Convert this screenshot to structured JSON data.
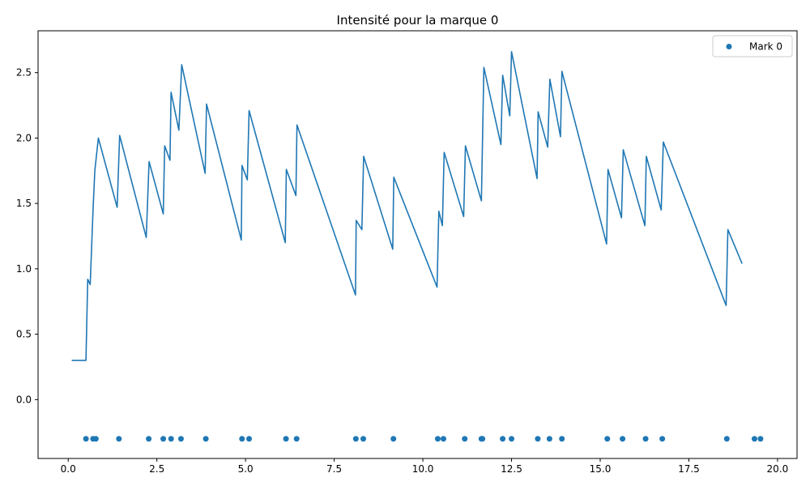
{
  "chart_data": {
    "type": "line",
    "title": "Intensité pour la marque 0",
    "xlabel": "",
    "ylabel": "",
    "xlim": [
      -0.85,
      20.55
    ],
    "ylim": [
      -0.45,
      2.82
    ],
    "xticks": [
      0.0,
      2.5,
      5.0,
      7.5,
      10.0,
      12.5,
      15.0,
      17.5,
      20.0
    ],
    "xtick_labels": [
      "0.0",
      "2.5",
      "5.0",
      "7.5",
      "10.0",
      "12.5",
      "15.0",
      "17.5",
      "20.0"
    ],
    "yticks": [
      0.0,
      0.5,
      1.0,
      1.5,
      2.0,
      2.5
    ],
    "ytick_labels": [
      "0.0",
      "0.5",
      "1.0",
      "1.5",
      "2.0",
      "2.5"
    ],
    "grid": false,
    "legend": {
      "placement": "top-right",
      "entries": [
        "Mark 0"
      ]
    },
    "colors": {
      "series": "#1f77b4"
    },
    "series": [
      {
        "name": "",
        "kind": "line",
        "x": [
          0.1,
          0.5,
          0.55,
          0.62,
          0.7,
          0.75,
          0.85,
          1.38,
          1.45,
          2.2,
          2.28,
          2.68,
          2.72,
          2.87,
          2.9,
          3.12,
          3.2,
          3.86,
          3.9,
          4.88,
          4.9,
          5.05,
          5.1,
          6.12,
          6.15,
          6.42,
          6.45,
          8.1,
          8.12,
          8.28,
          8.33,
          9.15,
          9.18,
          10.4,
          10.45,
          10.55,
          10.6,
          11.15,
          11.2,
          11.65,
          11.72,
          12.2,
          12.25,
          12.45,
          12.5,
          13.22,
          13.25,
          13.52,
          13.58,
          13.88,
          13.92,
          15.18,
          15.22,
          15.6,
          15.65,
          16.26,
          16.3,
          16.72,
          16.78,
          18.55,
          18.6,
          19.0
        ],
        "y": [
          0.3,
          0.3,
          0.92,
          0.88,
          1.45,
          1.75,
          2.0,
          1.47,
          2.02,
          1.24,
          1.82,
          1.42,
          1.94,
          1.83,
          2.35,
          2.06,
          2.56,
          1.73,
          2.26,
          1.22,
          1.79,
          1.68,
          2.21,
          1.2,
          1.76,
          1.56,
          2.1,
          0.8,
          1.37,
          1.3,
          1.86,
          1.15,
          1.7,
          0.86,
          1.44,
          1.33,
          1.89,
          1.4,
          1.94,
          1.52,
          2.54,
          1.95,
          2.48,
          2.17,
          2.66,
          1.69,
          2.2,
          1.93,
          2.45,
          2.01,
          2.51,
          1.19,
          1.76,
          1.39,
          1.91,
          1.33,
          1.86,
          1.45,
          1.97,
          0.72,
          1.3,
          1.04
        ]
      },
      {
        "name": "Mark 0",
        "kind": "scatter",
        "x": [
          0.5,
          0.7,
          0.78,
          1.43,
          2.27,
          2.68,
          2.9,
          3.18,
          3.88,
          4.9,
          5.1,
          6.14,
          6.44,
          8.11,
          8.32,
          9.17,
          10.42,
          10.58,
          11.18,
          11.65,
          11.68,
          12.25,
          12.5,
          13.24,
          13.57,
          13.92,
          15.2,
          15.63,
          16.28,
          16.75,
          18.57,
          19.35,
          19.52
        ],
        "y": [
          -0.3,
          -0.3,
          -0.3,
          -0.3,
          -0.3,
          -0.3,
          -0.3,
          -0.3,
          -0.3,
          -0.3,
          -0.3,
          -0.3,
          -0.3,
          -0.3,
          -0.3,
          -0.3,
          -0.3,
          -0.3,
          -0.3,
          -0.3,
          -0.3,
          -0.3,
          -0.3,
          -0.3,
          -0.3,
          -0.3,
          -0.3,
          -0.3,
          -0.3,
          -0.3,
          -0.3,
          -0.3,
          -0.3
        ]
      }
    ]
  }
}
